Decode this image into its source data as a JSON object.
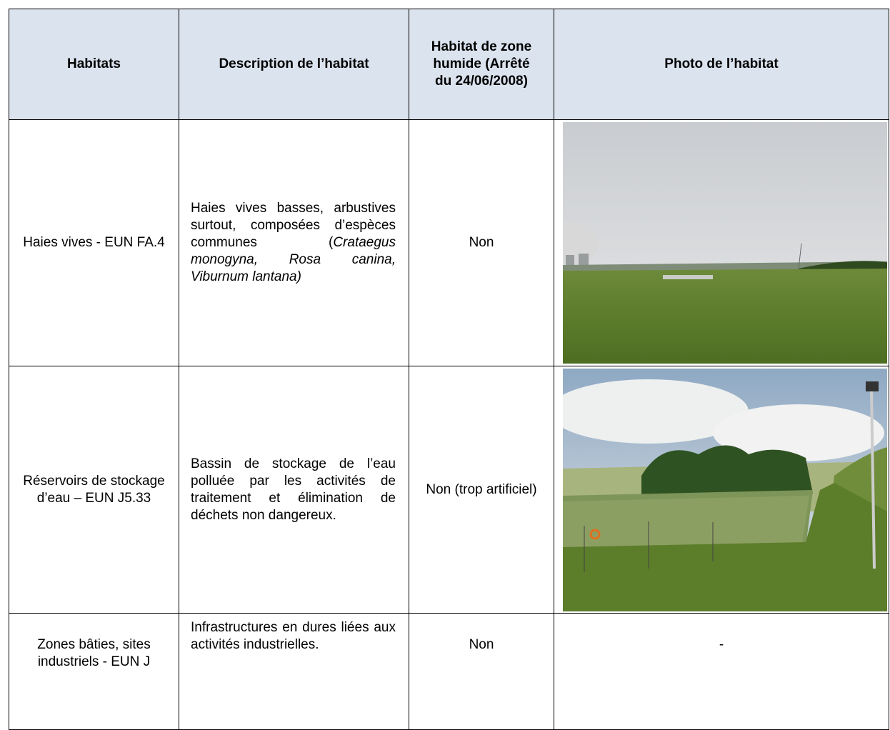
{
  "table": {
    "header": [
      "Habitats",
      "Description de l’habitat",
      "Habitat de zone humide (Arrêté du 24/06/2008)",
      "Photo de l’habitat"
    ],
    "rows": [
      {
        "habitat": "Haies vives - EUN FA.4",
        "description": [
          "Haies vives basses, arbustives surtout, composées d’espèces communes (",
          "Crataegus monogyna, Rosa canina, Viburnum lantana)"
        ],
        "zone_humide": "Non"
      },
      {
        "habitat": "Réservoirs de stockage d’eau – EUN J5.33",
        "description": [
          "Bassin de stockage de l’eau polluée par les activités de traitement et élimination de déchets non dangereux."
        ],
        "zone_humide": "Non (trop artificiel)"
      },
      {
        "habitat": "Zones bâties, sites industriels - EUN J",
        "description": [
          "Infrastructures en dures liées aux activités industrielles."
        ],
        "zone_humide": "Non",
        "photo": "-"
      }
    ]
  }
}
